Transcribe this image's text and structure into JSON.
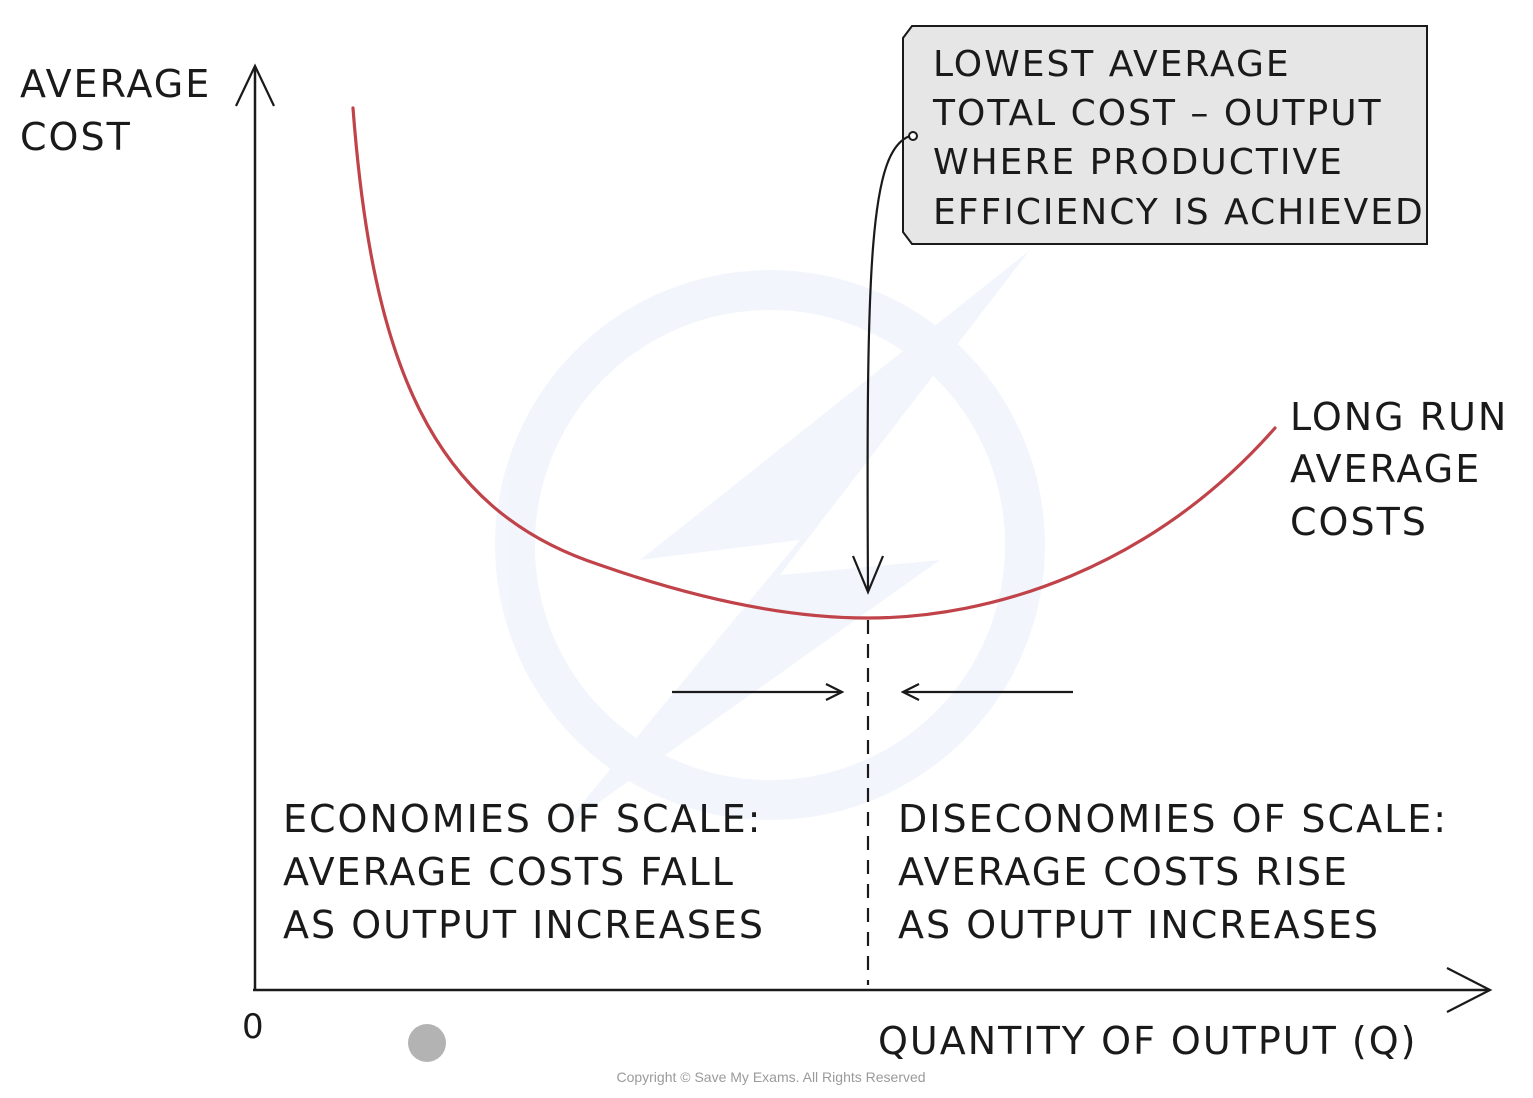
{
  "y_axis": {
    "label_lines": [
      "AVERAGE",
      "COST"
    ]
  },
  "x_axis": {
    "label": "QUANTITY OF OUTPUT (Q)",
    "origin": "0"
  },
  "callout": {
    "lines": [
      "LOWEST AVERAGE",
      "TOTAL COST – OUTPUT",
      "WHERE PRODUCTIVE",
      "EFFICIENCY IS ACHIEVED"
    ],
    "fill": "#e6e6e6"
  },
  "curve": {
    "label_lines": [
      "LONG RUN",
      "AVERAGE",
      "COSTS"
    ],
    "color": "#c0434a"
  },
  "left_region": {
    "lines": [
      "ECONOMIES OF SCALE:",
      "AVERAGE COSTS FALL",
      "AS OUTPUT INCREASES"
    ]
  },
  "right_region": {
    "lines": [
      "DISECONOMIES OF SCALE:",
      "AVERAGE COSTS RISE",
      "AS OUTPUT INCREASES"
    ]
  },
  "copyright": "Copyright © Save My Exams. All Rights Reserved"
}
